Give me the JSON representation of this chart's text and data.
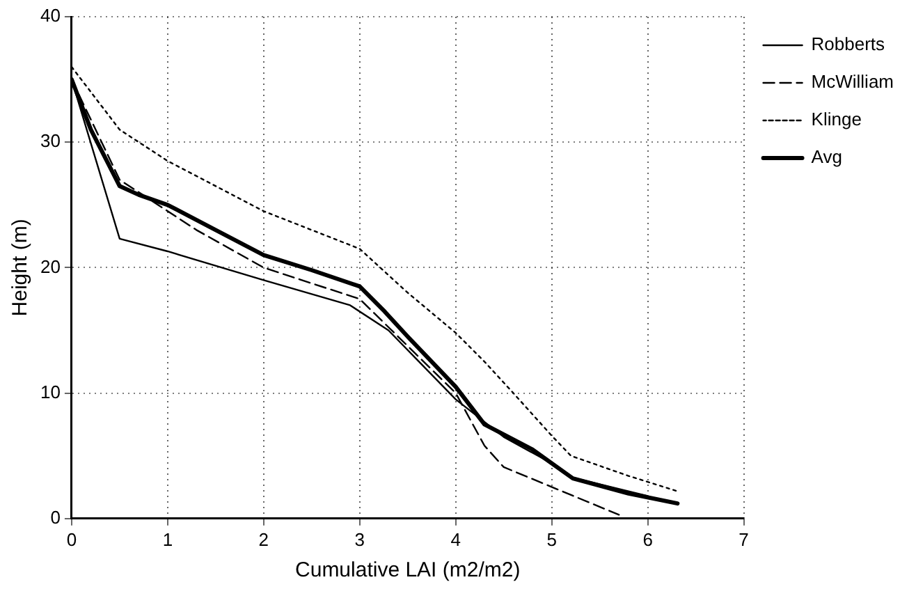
{
  "chart_data": {
    "type": "line",
    "xlabel": "Cumulative LAI (m2/m2)",
    "ylabel": "Height (m)",
    "xlim": [
      0,
      7
    ],
    "ylim": [
      0,
      40
    ],
    "xticks": [
      0,
      1,
      2,
      3,
      4,
      5,
      6,
      7
    ],
    "yticks": [
      0,
      10,
      20,
      30,
      40
    ],
    "grid": true,
    "legend": "right",
    "marker": "none",
    "series": [
      {
        "name": "Robberts",
        "color": "#000000",
        "line_style": "solid",
        "x": [
          0,
          0.5,
          1,
          2,
          2.9,
          3.3,
          4,
          4.5,
          5,
          5.2,
          6
        ],
        "values": [
          35,
          22.3,
          21.3,
          19,
          17,
          15,
          9.5,
          6.5,
          4.4,
          3.3,
          1.8
        ]
      },
      {
        "name": "McWilliam",
        "color": "#000000",
        "line_style": "dashed",
        "x": [
          0,
          0.5,
          1,
          1.3,
          2,
          3,
          4,
          4.3,
          4.5,
          5.7
        ],
        "values": [
          35,
          27,
          24.5,
          23,
          20,
          17.5,
          10,
          5.8,
          4.1,
          0.3
        ]
      },
      {
        "name": "Klinge",
        "color": "#000000",
        "line_style": "dotted",
        "x": [
          0,
          0.5,
          1,
          2,
          3,
          3.5,
          4,
          4.3,
          4.6,
          5,
          5.2,
          5.8,
          6.3
        ],
        "values": [
          36,
          31,
          28.5,
          24.5,
          21.5,
          18,
          14.8,
          12.5,
          10,
          6.6,
          5,
          3.4,
          2.2
        ]
      },
      {
        "name": "Avg",
        "color": "#000000",
        "line_style": "solid",
        "x": [
          0,
          0.2,
          0.5,
          0.7,
          1,
          1.5,
          2,
          2.5,
          3,
          3.26,
          3.5,
          4,
          4.3,
          4.8,
          5.22,
          5.8,
          6.31
        ],
        "values": [
          35,
          31,
          26.5,
          25.8,
          25,
          23,
          21,
          19.8,
          18.5,
          16.5,
          14.5,
          10.5,
          7.5,
          5.5,
          3.2,
          2,
          1.2
        ]
      }
    ]
  }
}
